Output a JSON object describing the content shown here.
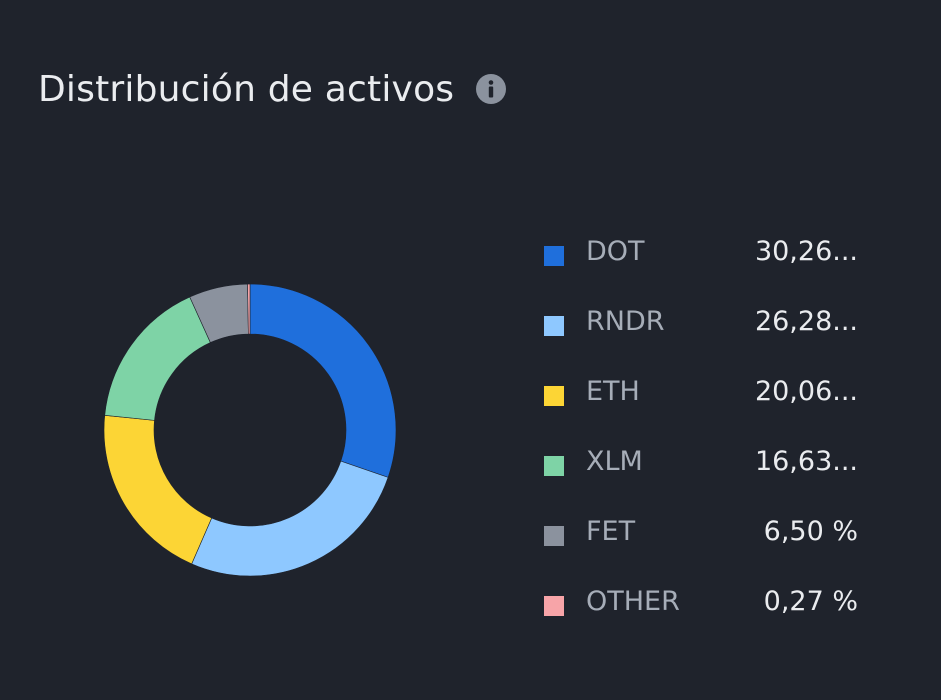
{
  "header": {
    "title": "Distribución de activos",
    "info_icon": "info-icon"
  },
  "colors": {
    "background": "#1f232c",
    "text_primary": "#eaecef",
    "text_secondary": "#a6adb8",
    "icon": "#8b929e"
  },
  "chart_data": {
    "type": "pie",
    "variant": "donut",
    "title": "Distribución de activos",
    "slices": [
      {
        "label": "DOT",
        "value": 30.26,
        "display": "30,26...",
        "color": "#1f6fdc"
      },
      {
        "label": "RNDR",
        "value": 26.28,
        "display": "26,28...",
        "color": "#8ec8ff"
      },
      {
        "label": "ETH",
        "value": 20.06,
        "display": "20,06...",
        "color": "#fcd535"
      },
      {
        "label": "XLM",
        "value": 16.63,
        "display": "16,63...",
        "color": "#7ed3a6"
      },
      {
        "label": "FET",
        "value": 6.5,
        "display": "6,50 %",
        "color": "#8b929e"
      },
      {
        "label": "OTHER",
        "value": 0.27,
        "display": "0,27 %",
        "color": "#f7a4a8"
      }
    ],
    "legend_position": "right"
  }
}
